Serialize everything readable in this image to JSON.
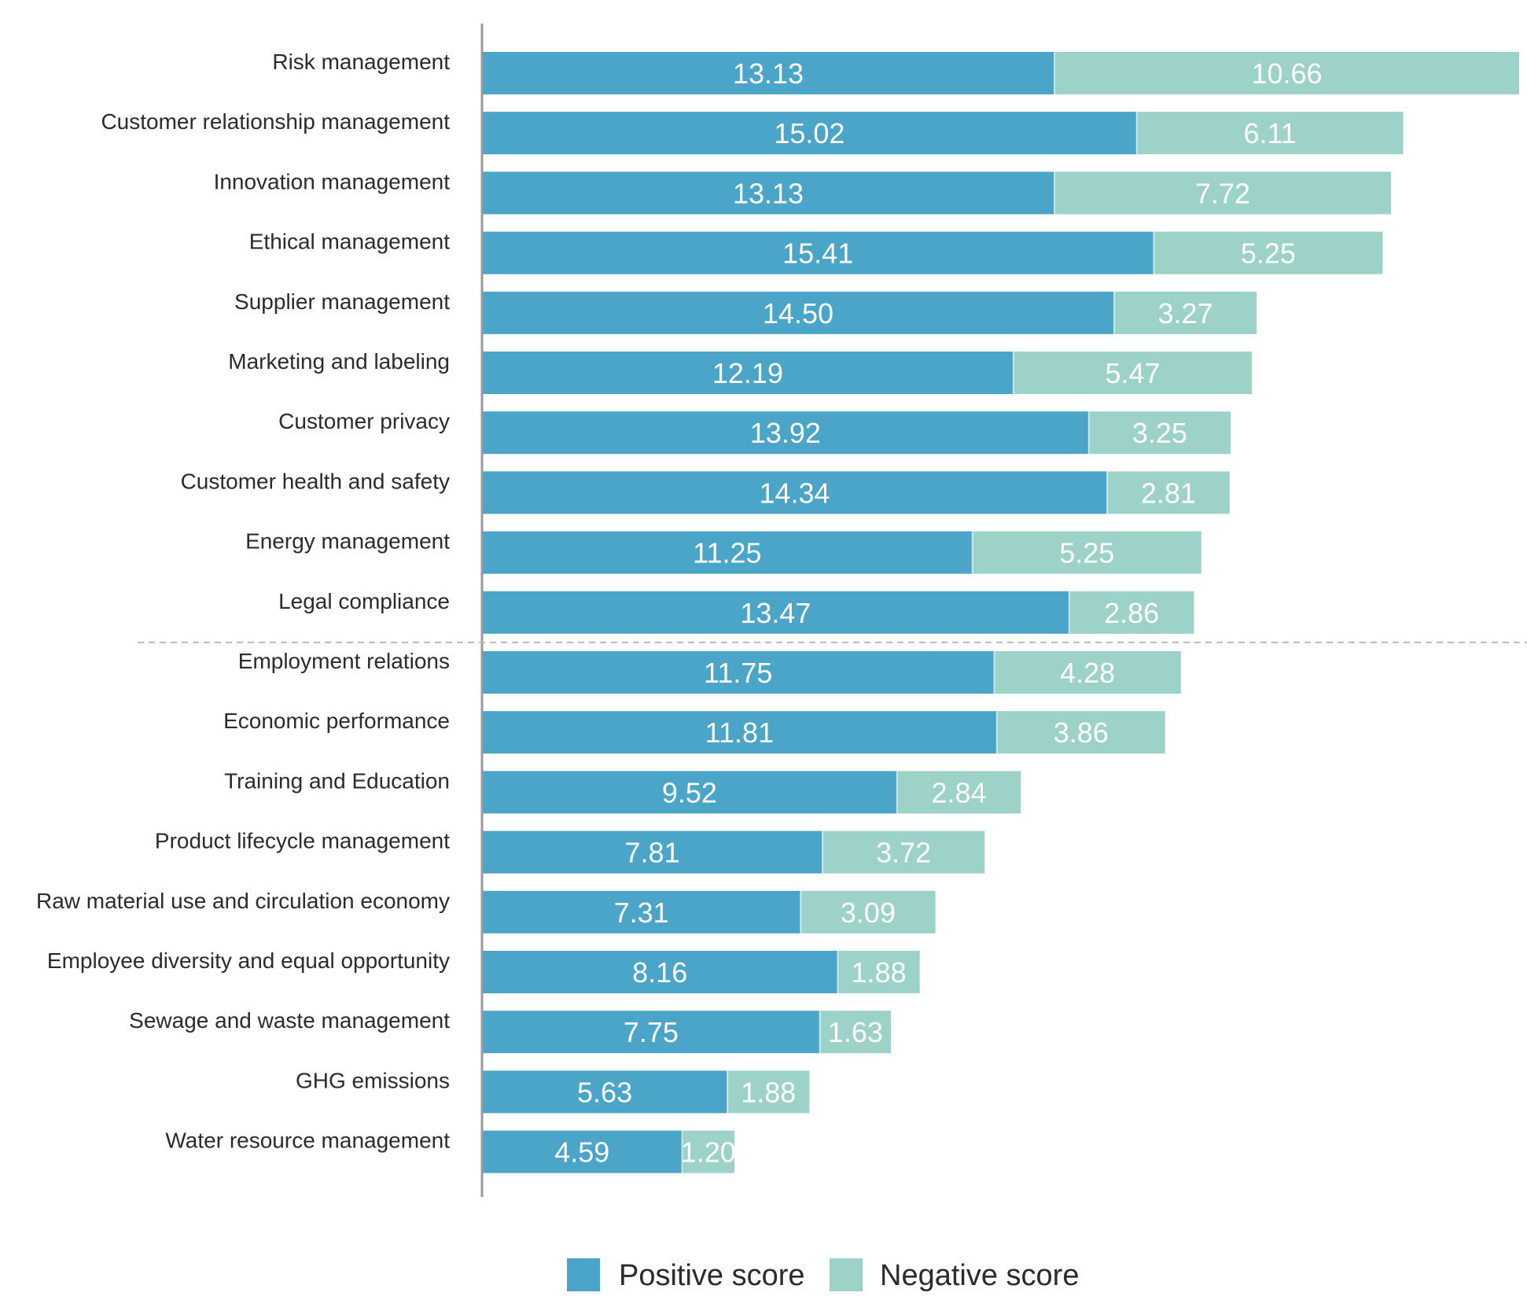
{
  "chart_data": {
    "type": "bar",
    "orientation": "horizontal",
    "stacked": true,
    "categories": [
      "Risk management",
      "Customer relationship management",
      "Innovation management",
      "Ethical management",
      "Supplier management",
      "Marketing and labeling",
      "Customer privacy",
      "Customer health and safety",
      "Energy management",
      "Legal compliance",
      "Employment relations",
      "Economic performance",
      "Training and Education",
      "Product lifecycle management",
      "Raw material use and circulation economy",
      "Employee diversity and equal opportunity",
      "Sewage and waste management",
      "GHG emissions",
      "Water resource management"
    ],
    "series": [
      {
        "name": "Positive score",
        "color": "#4aa5c9",
        "values": [
          13.13,
          15.02,
          13.13,
          15.41,
          14.5,
          12.19,
          13.92,
          14.34,
          11.25,
          13.47,
          11.75,
          11.81,
          9.52,
          7.81,
          7.31,
          8.16,
          7.75,
          5.63,
          4.59
        ],
        "labels": [
          "13.13",
          "15.02",
          "13.13",
          "15.41",
          "14.50",
          "12.19",
          "13.92",
          "14.34",
          "11.25",
          "13.47",
          "11.75",
          "11.81",
          "9.52",
          "7.81",
          "7.31",
          "8.16",
          "7.75",
          "5.63",
          "4.59"
        ]
      },
      {
        "name": "Negative score",
        "color": "#9dd2c8",
        "values": [
          10.66,
          6.11,
          7.72,
          5.25,
          3.27,
          5.47,
          3.25,
          2.81,
          5.25,
          2.86,
          4.28,
          3.86,
          2.84,
          3.72,
          3.09,
          1.88,
          1.63,
          1.88,
          1.2
        ],
        "labels": [
          "10.66",
          "6.11",
          "7.72",
          "5.25",
          "3.27",
          "5.47",
          "3.25",
          "2.81",
          "5.25",
          "2.86",
          "4.28",
          "3.86",
          "2.84",
          "3.72",
          "3.09",
          "1.88",
          "1.63",
          "1.88",
          "1.20"
        ]
      }
    ],
    "xlim": [
      0,
      23.79
    ],
    "grid": false,
    "divider_after_category": "Legal compliance",
    "legend": {
      "position": "bottom-center",
      "entries": [
        "Positive score",
        "Negative score"
      ]
    }
  }
}
